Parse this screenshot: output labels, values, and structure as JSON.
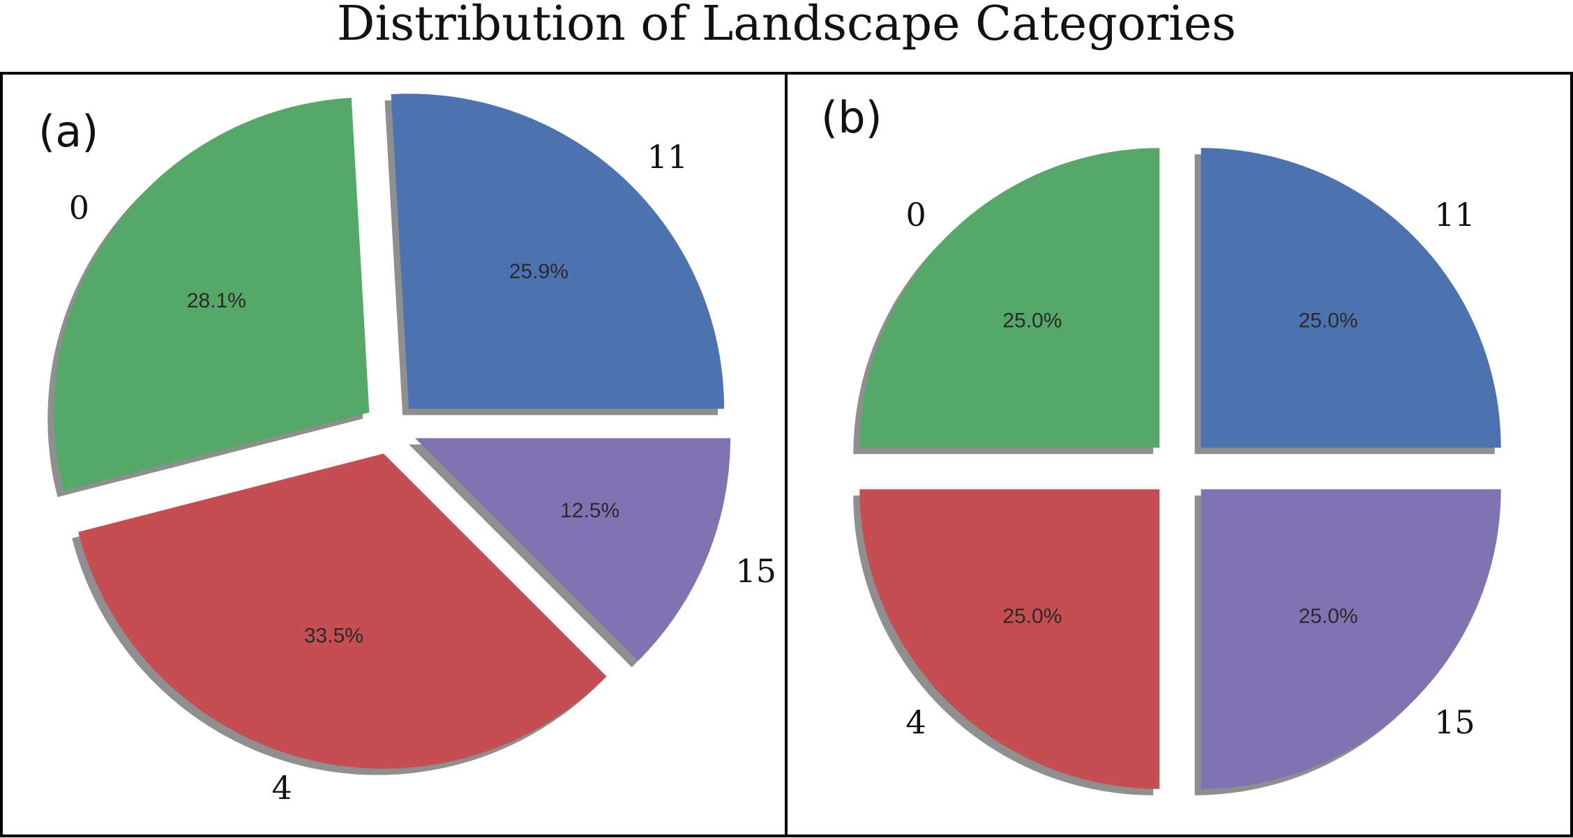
{
  "title": "Distribution of Landscape Categories",
  "colors": {
    "11": "#4c72b0",
    "0": "#55a868",
    "4": "#c44e52",
    "15": "#8172b2",
    "shadow": "#8f8f8f",
    "frame": "#000000"
  },
  "chart_data": [
    {
      "type": "pie",
      "panel_label": "(a)",
      "start_angle_deg": 0,
      "direction": "counterclockwise",
      "shadow": true,
      "slices": [
        {
          "label": "11",
          "value": 25.9,
          "pct_text": "25.9%"
        },
        {
          "label": "0",
          "value": 28.1,
          "pct_text": "28.1%"
        },
        {
          "label": "4",
          "value": 33.5,
          "pct_text": "33.5%"
        },
        {
          "label": "15",
          "value": 12.5,
          "pct_text": "12.5%"
        }
      ]
    },
    {
      "type": "pie",
      "panel_label": "(b)",
      "start_angle_deg": 0,
      "direction": "counterclockwise",
      "shadow": true,
      "slices": [
        {
          "label": "11",
          "value": 25.0,
          "pct_text": "25.0%"
        },
        {
          "label": "0",
          "value": 25.0,
          "pct_text": "25.0%"
        },
        {
          "label": "4",
          "value": 25.0,
          "pct_text": "25.0%"
        },
        {
          "label": "15",
          "value": 25.0,
          "pct_text": "25.0%"
        }
      ]
    }
  ]
}
